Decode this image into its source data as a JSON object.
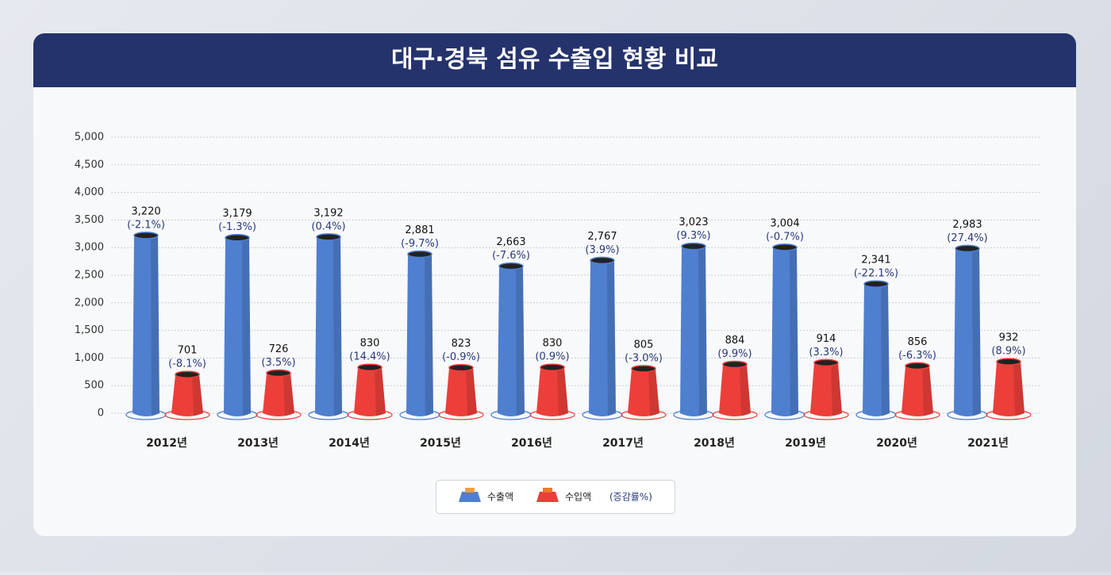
{
  "chart_data": {
    "type": "bar",
    "title": "대구·경북 섬유 수출입 현황 비교",
    "categories": [
      "2012년",
      "2013년",
      "2014년",
      "2015년",
      "2016년",
      "2017년",
      "2018년",
      "2019년",
      "2020년",
      "2021년"
    ],
    "series": [
      {
        "name": "수출액",
        "color": "#4f7fcf",
        "values": [
          3220,
          3179,
          3192,
          2881,
          2663,
          2767,
          3023,
          3004,
          2341,
          2983
        ],
        "value_labels": [
          "3,220",
          "3,179",
          "3,192",
          "2,881",
          "2,663",
          "2,767",
          "3,023",
          "3,004",
          "2,341",
          "2,983"
        ],
        "change_labels": [
          "(-2.1%)",
          "(-1.3%)",
          "(0.4%)",
          "(-9.7%)",
          "(-7.6%)",
          "(3.9%)",
          "(9.3%)",
          "(-0.7%)",
          "(-22.1%)",
          "(27.4%)"
        ]
      },
      {
        "name": "수입액",
        "color": "#ec3f3a",
        "values": [
          701,
          726,
          830,
          823,
          830,
          805,
          884,
          914,
          856,
          932
        ],
        "value_labels": [
          "701",
          "726",
          "830",
          "823",
          "830",
          "805",
          "884",
          "914",
          "856",
          "932"
        ],
        "change_labels": [
          "(-8.1%)",
          "(3.5%)",
          "(14.4%)",
          "(-0.9%)",
          "(0.9%)",
          "(-3.0%)",
          "(9.9%)",
          "(3.3%)",
          "(-6.3%)",
          "(8.9%)"
        ]
      }
    ],
    "legend_note": "(증감률%)",
    "ylim": [
      0,
      5000
    ],
    "yticks": [
      0,
      500,
      {
        "value": 1000,
        "label": "1,000"
      },
      {
        "value": 1500,
        "label": "1,500"
      },
      {
        "value": 2000,
        "label": "2,000"
      },
      {
        "value": 2500,
        "label": "2,500"
      },
      {
        "value": 3000,
        "label": "3,000"
      },
      {
        "value": 3500,
        "label": "3,500"
      },
      {
        "value": 4000,
        "label": "4,000"
      },
      {
        "value": 4500,
        "label": "4,500"
      },
      {
        "value": 5000,
        "label": "5,000"
      }
    ],
    "grid": true
  }
}
